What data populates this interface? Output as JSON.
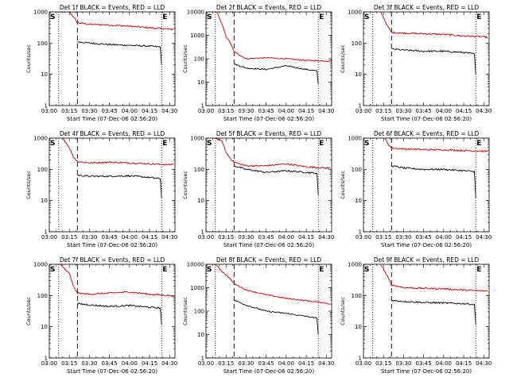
{
  "colors": {
    "events": "#000000",
    "lld": "#cc0000",
    "axis": "#000000",
    "background": "#ffffff"
  },
  "chart_data": [
    {
      "type": "line",
      "title": "Det 1f BLACK = Events, RED = LLD",
      "xlabel": "Start Time (07-Dec-06 02:56:20)",
      "ylabel": "Counts/sec",
      "yscale": "log",
      "ylim": [
        1,
        1000
      ],
      "xlim": [
        "03:00",
        "04:34"
      ],
      "x_tick_labels": [
        "03:00",
        "03:15",
        "03:30",
        "03:45",
        "04:00",
        "04:15",
        "04:30"
      ],
      "y_tick_labels": [
        "1",
        "10",
        "100",
        "1000"
      ],
      "markers": {
        "S": "03:00",
        "E": "04:24"
      },
      "vlines_dotted": [
        "03:07",
        "04:24"
      ],
      "vline_dashed": "03:21",
      "series": [
        {
          "name": "LLD",
          "color": "red",
          "points": [
            [
              "03:08",
              1000
            ],
            [
              "03:15",
              1000
            ],
            [
              "03:18",
              700
            ],
            [
              "03:21",
              450
            ],
            [
              "03:30",
              400
            ],
            [
              "03:45",
              380
            ],
            [
              "04:00",
              350
            ],
            [
              "04:15",
              310
            ],
            [
              "04:30",
              280
            ],
            [
              "04:33",
              280
            ]
          ]
        },
        {
          "name": "Events",
          "color": "black",
          "points": [
            [
              "03:21",
              110
            ],
            [
              "03:30",
              100
            ],
            [
              "03:45",
              90
            ],
            [
              "04:00",
              85
            ],
            [
              "04:15",
              80
            ],
            [
              "04:23",
              75
            ],
            [
              "04:24",
              20
            ]
          ]
        }
      ]
    },
    {
      "type": "line",
      "title": "Det 2f BLACK = Events, RED = LLD",
      "xlabel": "Start Time (07-Dec-06 02:56:20)",
      "ylabel": "Counts/sec",
      "yscale": "log",
      "ylim": [
        1,
        10000
      ],
      "xlim": [
        "03:00",
        "04:34"
      ],
      "x_tick_labels": [
        "03:00",
        "03:15",
        "03:30",
        "03:45",
        "04:00",
        "04:15",
        "04:30"
      ],
      "y_tick_labels": [
        "1",
        "10",
        "100",
        "1000",
        "10000"
      ],
      "markers": {
        "S": "03:00",
        "E": "04:24"
      },
      "vlines_dotted": [
        "03:07",
        "04:24"
      ],
      "vline_dashed": "03:21",
      "series": [
        {
          "name": "LLD",
          "color": "red",
          "points": [
            [
              "03:08",
              10000
            ],
            [
              "03:12",
              3000
            ],
            [
              "03:15",
              900
            ],
            [
              "03:18",
              500
            ],
            [
              "03:21",
              200
            ],
            [
              "03:30",
              100
            ],
            [
              "03:45",
              110
            ],
            [
              "04:00",
              100
            ],
            [
              "04:15",
              85
            ],
            [
              "04:30",
              80
            ],
            [
              "04:33",
              80
            ]
          ]
        },
        {
          "name": "Events",
          "color": "black",
          "points": [
            [
              "03:21",
              60
            ],
            [
              "03:30",
              40
            ],
            [
              "03:45",
              35
            ],
            [
              "04:00",
              50
            ],
            [
              "04:15",
              35
            ],
            [
              "04:23",
              30
            ],
            [
              "04:24",
              8
            ]
          ]
        }
      ]
    },
    {
      "type": "line",
      "title": "Det 3f BLACK = Events, RED = LLD",
      "xlabel": "Start Time (07-Dec-06 02:56:20)",
      "ylabel": "Counts/sec",
      "yscale": "log",
      "ylim": [
        1,
        1000
      ],
      "xlim": [
        "03:00",
        "04:34"
      ],
      "x_tick_labels": [
        "03:00",
        "03:15",
        "03:30",
        "03:45",
        "04:00",
        "04:15",
        "04:30"
      ],
      "y_tick_labels": [
        "1",
        "10",
        "100",
        "1000"
      ],
      "markers": {
        "S": "03:00",
        "E": "04:24"
      },
      "vlines_dotted": [
        "03:07",
        "04:24"
      ],
      "vline_dashed": "03:21",
      "series": [
        {
          "name": "LLD",
          "color": "red",
          "points": [
            [
              "03:13",
              1000
            ],
            [
              "03:18",
              350
            ],
            [
              "03:21",
              220
            ],
            [
              "03:30",
              210
            ],
            [
              "03:45",
              200
            ],
            [
              "04:00",
              190
            ],
            [
              "04:15",
              170
            ],
            [
              "04:30",
              160
            ],
            [
              "04:33",
              150
            ]
          ]
        },
        {
          "name": "Events",
          "color": "black",
          "points": [
            [
              "03:21",
              65
            ],
            [
              "03:30",
              60
            ],
            [
              "03:45",
              55
            ],
            [
              "04:00",
              55
            ],
            [
              "04:15",
              50
            ],
            [
              "04:23",
              45
            ],
            [
              "04:24",
              10
            ]
          ]
        }
      ]
    },
    {
      "type": "line",
      "title": "Det 4f BLACK = Events, RED = LLD",
      "xlabel": "Start Time (07-Dec-06 02:56:20)",
      "ylabel": "Counts/sec",
      "yscale": "log",
      "ylim": [
        1,
        1000
      ],
      "xlim": [
        "03:00",
        "04:34"
      ],
      "x_tick_labels": [
        "03:00",
        "03:15",
        "03:30",
        "03:45",
        "04:00",
        "04:15",
        "04:30"
      ],
      "y_tick_labels": [
        "1",
        "10",
        "100",
        "1000"
      ],
      "markers": {
        "S": "03:00",
        "E": "04:24"
      },
      "vlines_dotted": [
        "03:07",
        "04:24"
      ],
      "vline_dashed": "03:21",
      "series": [
        {
          "name": "LLD",
          "color": "red",
          "points": [
            [
              "03:10",
              1000
            ],
            [
              "03:15",
              500
            ],
            [
              "03:18",
              250
            ],
            [
              "03:21",
              180
            ],
            [
              "03:30",
              160
            ],
            [
              "03:45",
              170
            ],
            [
              "04:00",
              160
            ],
            [
              "04:15",
              150
            ],
            [
              "04:30",
              140
            ],
            [
              "04:33",
              150
            ]
          ]
        },
        {
          "name": "Events",
          "color": "black",
          "points": [
            [
              "03:21",
              65
            ],
            [
              "03:30",
              60
            ],
            [
              "03:45",
              60
            ],
            [
              "04:00",
              62
            ],
            [
              "04:15",
              55
            ],
            [
              "04:23",
              50
            ],
            [
              "04:24",
              12
            ]
          ]
        }
      ]
    },
    {
      "type": "line",
      "title": "Det 5f BLACK = Events, RED = LLD",
      "xlabel": "Start Time (07-Dec-06 02:56:20)",
      "ylabel": "Counts/sec",
      "yscale": "log",
      "ylim": [
        1,
        1000
      ],
      "xlim": [
        "03:00",
        "04:34"
      ],
      "x_tick_labels": [
        "03:00",
        "03:15",
        "03:30",
        "03:45",
        "04:00",
        "04:15",
        "04:30"
      ],
      "y_tick_labels": [
        "1",
        "10",
        "100",
        "1000"
      ],
      "markers": {
        "S": "03:00",
        "E": "04:24"
      },
      "vlines_dotted": [
        "03:07",
        "04:24"
      ],
      "vline_dashed": "03:21",
      "series": [
        {
          "name": "LLD",
          "color": "red",
          "points": [
            [
              "03:07",
              1000
            ],
            [
              "03:12",
              800
            ],
            [
              "03:15",
              350
            ],
            [
              "03:18",
              230
            ],
            [
              "03:21",
              170
            ],
            [
              "03:30",
              130
            ],
            [
              "03:45",
              130
            ],
            [
              "04:00",
              150
            ],
            [
              "04:15",
              120
            ],
            [
              "04:30",
              110
            ],
            [
              "04:33",
              110
            ]
          ]
        },
        {
          "name": "Events",
          "color": "black",
          "points": [
            [
              "03:21",
              130
            ],
            [
              "03:30",
              100
            ],
            [
              "03:45",
              80
            ],
            [
              "04:00",
              90
            ],
            [
              "04:15",
              80
            ],
            [
              "04:23",
              75
            ],
            [
              "04:24",
              15
            ]
          ]
        }
      ]
    },
    {
      "type": "line",
      "title": "Det 6f BLACK = Events, RED = LLD",
      "xlabel": "Start Time (07-Dec-06 02:56:20)",
      "ylabel": "Counts/sec",
      "yscale": "log",
      "ylim": [
        1,
        1000
      ],
      "xlim": [
        "03:00",
        "04:34"
      ],
      "x_tick_labels": [
        "03:00",
        "03:15",
        "03:30",
        "03:45",
        "04:00",
        "04:15",
        "04:30"
      ],
      "y_tick_labels": [
        "1",
        "10",
        "100",
        "1000"
      ],
      "markers": {
        "S": "03:00",
        "E": "04:24"
      },
      "vlines_dotted": [
        "03:07",
        "04:24"
      ],
      "vline_dashed": "03:21",
      "series": [
        {
          "name": "LLD",
          "color": "red",
          "points": [
            [
              "03:16",
              1000
            ],
            [
              "03:19",
              600
            ],
            [
              "03:21",
              480
            ],
            [
              "03:30",
              450
            ],
            [
              "03:45",
              430
            ],
            [
              "04:00",
              420
            ],
            [
              "04:15",
              400
            ],
            [
              "04:30",
              380
            ],
            [
              "04:33",
              380
            ]
          ]
        },
        {
          "name": "Events",
          "color": "black",
          "points": [
            [
              "03:21",
              130
            ],
            [
              "03:30",
              110
            ],
            [
              "03:45",
              100
            ],
            [
              "04:00",
              100
            ],
            [
              "04:15",
              90
            ],
            [
              "04:23",
              85
            ],
            [
              "04:24",
              12
            ]
          ]
        }
      ]
    },
    {
      "type": "line",
      "title": "Det 7f BLACK = Events, RED = LLD",
      "xlabel": "Start Time (07-Dec-06 02:56:20)",
      "ylabel": "Counts/sec",
      "yscale": "log",
      "ylim": [
        1,
        1000
      ],
      "xlim": [
        "03:00",
        "04:34"
      ],
      "x_tick_labels": [
        "03:00",
        "03:15",
        "03:30",
        "03:45",
        "04:00",
        "04:15",
        "04:30"
      ],
      "y_tick_labels": [
        "1",
        "10",
        "100",
        "1000"
      ],
      "markers": {
        "S": "03:00",
        "E": "04:24"
      },
      "vlines_dotted": [
        "03:07",
        "04:24"
      ],
      "vline_dashed": "03:21",
      "series": [
        {
          "name": "LLD",
          "color": "red",
          "points": [
            [
              "03:08",
              1000
            ],
            [
              "03:15",
              500
            ],
            [
              "03:18",
              200
            ],
            [
              "03:21",
              120
            ],
            [
              "03:30",
              110
            ],
            [
              "03:45",
              120
            ],
            [
              "04:00",
              130
            ],
            [
              "04:15",
              110
            ],
            [
              "04:30",
              100
            ],
            [
              "04:33",
              95
            ]
          ]
        },
        {
          "name": "Events",
          "color": "black",
          "points": [
            [
              "03:21",
              55
            ],
            [
              "03:30",
              50
            ],
            [
              "03:45",
              45
            ],
            [
              "04:00",
              48
            ],
            [
              "04:15",
              42
            ],
            [
              "04:23",
              40
            ],
            [
              "04:24",
              12
            ]
          ]
        }
      ]
    },
    {
      "type": "line",
      "title": "Det 8f BLACK = Events, RED = LLD",
      "xlabel": "Start Time (07-Dec-06 02:56:20)",
      "ylabel": "Counts/sec",
      "yscale": "log",
      "ylim": [
        1,
        10000
      ],
      "xlim": [
        "03:00",
        "04:34"
      ],
      "x_tick_labels": [
        "03:00",
        "03:15",
        "03:30",
        "03:45",
        "04:00",
        "04:15",
        "04:30"
      ],
      "y_tick_labels": [
        "1",
        "10",
        "100",
        "1000",
        "10000"
      ],
      "markers": {
        "S": "03:00",
        "E": "04:24"
      },
      "vlines_dotted": [
        "03:07",
        "04:24"
      ],
      "vline_dashed": "03:21",
      "series": [
        {
          "name": "LLD",
          "color": "red",
          "points": [
            [
              "03:07",
              10000
            ],
            [
              "03:12",
              5000
            ],
            [
              "03:18",
              2500
            ],
            [
              "03:21",
              1500
            ],
            [
              "03:30",
              800
            ],
            [
              "03:45",
              500
            ],
            [
              "04:00",
              350
            ],
            [
              "04:15",
              280
            ],
            [
              "04:30",
              220
            ],
            [
              "04:33",
              200
            ]
          ]
        },
        {
          "name": "Events",
          "color": "black",
          "points": [
            [
              "03:21",
              300
            ],
            [
              "03:30",
              180
            ],
            [
              "03:45",
              100
            ],
            [
              "04:00",
              80
            ],
            [
              "04:15",
              60
            ],
            [
              "04:23",
              50
            ],
            [
              "04:24",
              10
            ]
          ]
        }
      ]
    },
    {
      "type": "line",
      "title": "Det 9f BLACK = Events, RED = LLD",
      "xlabel": "Start Time (07-Dec-06 02:56:20)",
      "ylabel": "Counts/sec",
      "yscale": "log",
      "ylim": [
        1,
        1000
      ],
      "xlim": [
        "03:00",
        "04:34"
      ],
      "x_tick_labels": [
        "03:00",
        "03:15",
        "03:30",
        "03:45",
        "04:00",
        "04:15",
        "04:30"
      ],
      "y_tick_labels": [
        "1",
        "10",
        "100",
        "1000"
      ],
      "markers": {
        "S": "03:00",
        "E": "04:24"
      },
      "vlines_dotted": [
        "03:07",
        "04:24"
      ],
      "vline_dashed": "03:21",
      "series": [
        {
          "name": "LLD",
          "color": "red",
          "points": [
            [
              "03:13",
              1000
            ],
            [
              "03:18",
              400
            ],
            [
              "03:21",
              220
            ],
            [
              "03:30",
              180
            ],
            [
              "03:45",
              170
            ],
            [
              "04:00",
              165
            ],
            [
              "04:15",
              150
            ],
            [
              "04:30",
              140
            ],
            [
              "04:33",
              140
            ]
          ]
        },
        {
          "name": "Events",
          "color": "black",
          "points": [
            [
              "03:21",
              70
            ],
            [
              "03:30",
              65
            ],
            [
              "03:45",
              60
            ],
            [
              "04:00",
              58
            ],
            [
              "04:15",
              55
            ],
            [
              "04:23",
              52
            ],
            [
              "04:24",
              12
            ]
          ]
        }
      ]
    }
  ]
}
